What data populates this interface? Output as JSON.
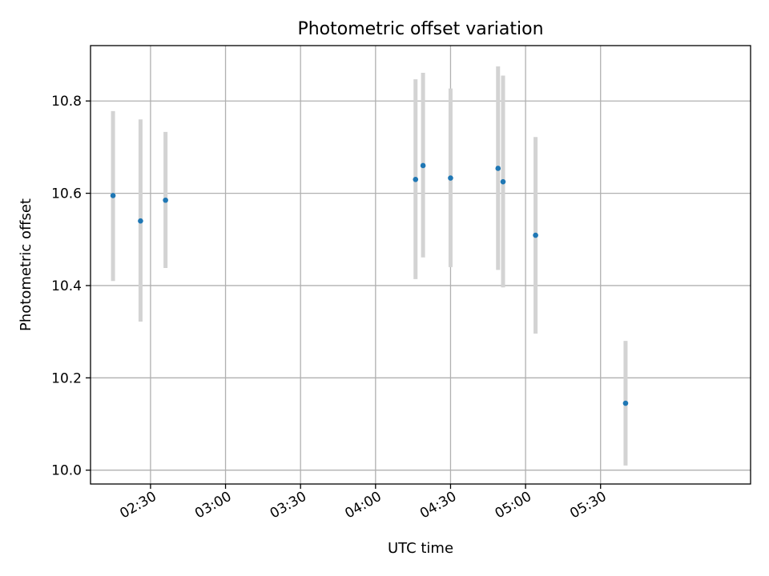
{
  "chart_data": {
    "type": "scatter",
    "title": "Photometric offset variation",
    "xlabel": "UTC time",
    "ylabel": "Photometric offset",
    "x_axis_type": "time",
    "xlim": [
      "02:06",
      "06:30"
    ],
    "ylim": [
      9.97,
      10.92
    ],
    "x_ticks": [
      "02:30",
      "03:00",
      "03:30",
      "04:00",
      "04:30",
      "05:00",
      "05:30"
    ],
    "y_ticks": [
      10.0,
      10.2,
      10.4,
      10.6,
      10.8
    ],
    "grid": true,
    "point_color": "#1f77b4",
    "errorbar_color": "#d3d3d3",
    "points": [
      {
        "time": "02:15",
        "value": 10.595,
        "low": 10.41,
        "high": 10.778
      },
      {
        "time": "02:26",
        "value": 10.54,
        "low": 10.322,
        "high": 10.76
      },
      {
        "time": "02:36",
        "value": 10.585,
        "low": 10.438,
        "high": 10.733
      },
      {
        "time": "04:16",
        "value": 10.63,
        "low": 10.414,
        "high": 10.847
      },
      {
        "time": "04:19",
        "value": 10.66,
        "low": 10.461,
        "high": 10.861
      },
      {
        "time": "04:30",
        "value": 10.633,
        "low": 10.44,
        "high": 10.827
      },
      {
        "time": "04:49",
        "value": 10.654,
        "low": 10.434,
        "high": 10.875
      },
      {
        "time": "04:51",
        "value": 10.625,
        "low": 10.396,
        "high": 10.855
      },
      {
        "time": "05:04",
        "value": 10.509,
        "low": 10.296,
        "high": 10.722
      },
      {
        "time": "05:40",
        "value": 10.145,
        "low": 10.01,
        "high": 10.28
      }
    ]
  }
}
